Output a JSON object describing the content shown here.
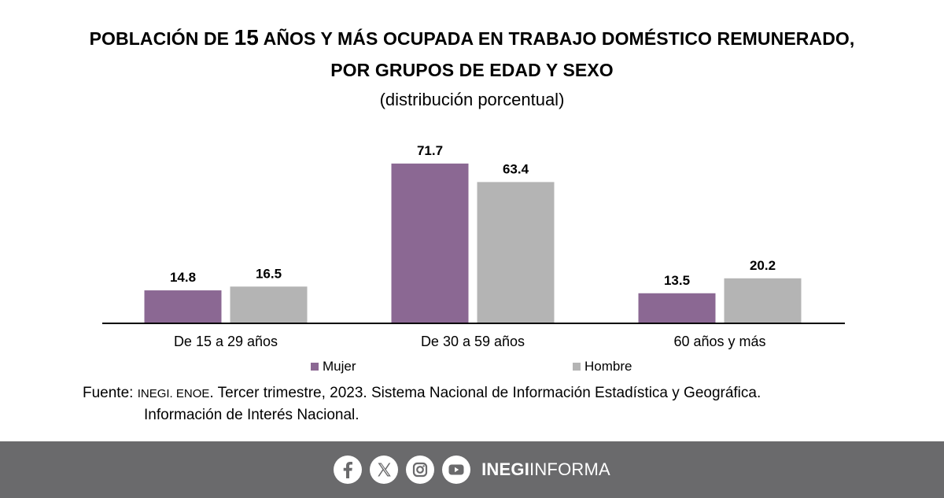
{
  "title": {
    "line1_prefix": "POBLACIÓN DE ",
    "line1_number": "15",
    "line1_suffix": " AÑOS Y MÁS OCUPADA EN TRABAJO DOMÉSTICO REMUNERADO,",
    "line2": "POR GRUPOS DE EDAD Y SEXO",
    "subtitle": "(distribución porcentual)"
  },
  "chart_data": {
    "type": "bar",
    "categories": [
      "De 15 a 29 años",
      "De 30 a 59 años",
      "60 años y más"
    ],
    "series": [
      {
        "name": "Mujer",
        "values": [
          14.8,
          71.7,
          13.5
        ],
        "color": "#8b6893"
      },
      {
        "name": "Hombre",
        "values": [
          16.5,
          63.4,
          20.2
        ],
        "color": "#b4b4b4"
      }
    ],
    "title": "POBLACIÓN DE 15 AÑOS Y MÁS OCUPADA EN TRABAJO DOMÉSTICO REMUNERADO, POR GRUPOS DE EDAD Y SEXO",
    "subtitle": "(distribución porcentual)",
    "ylim": [
      0,
      80
    ],
    "grid": false,
    "legend": "bottom"
  },
  "legend": {
    "mujer": "Mujer",
    "hombre": "Hombre"
  },
  "source": {
    "label": "Fuente: ",
    "org": "INEGI. ENOE",
    "rest": ". Tercer trimestre, 2023. Sistema Nacional de Información Estadística y Geográfica.",
    "line2": "Información de Interés Nacional."
  },
  "footer": {
    "icons": [
      "facebook-icon",
      "x-icon",
      "instagram-icon",
      "youtube-icon"
    ],
    "brand_bold": "INEGI",
    "brand_regular": "INFORMA",
    "background": "#6a6a6c"
  }
}
